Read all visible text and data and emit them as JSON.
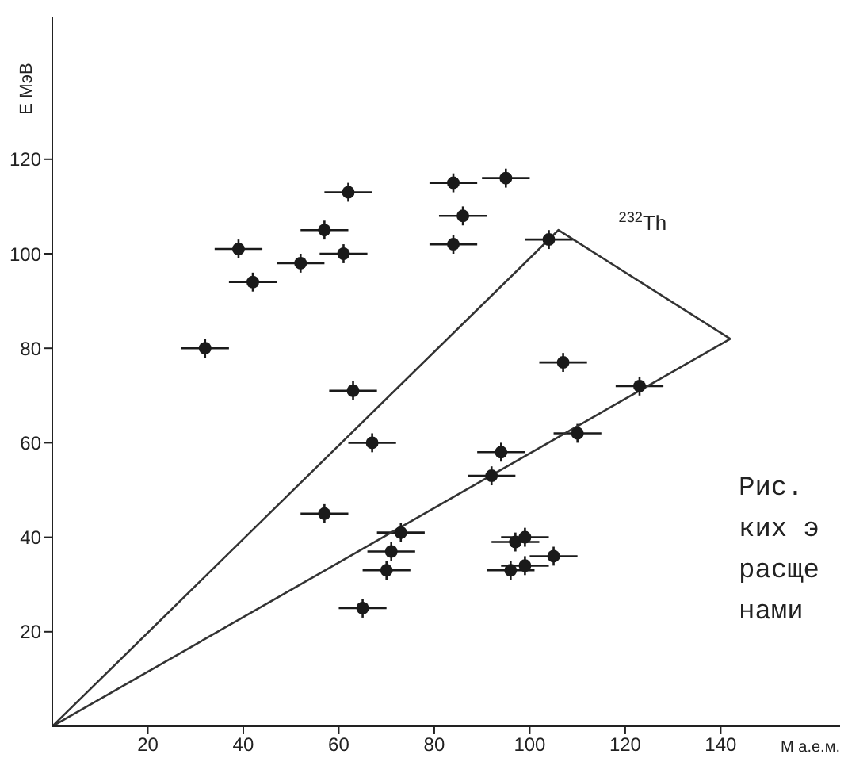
{
  "chart_data": {
    "type": "scatter",
    "xlabel": "M а.е.м.",
    "ylabel": "E МэВ",
    "xlim": [
      0,
      165
    ],
    "ylim": [
      0,
      150
    ],
    "xticks": [
      20,
      40,
      60,
      80,
      100,
      120,
      140
    ],
    "yticks": [
      20,
      40,
      60,
      80,
      100,
      120
    ],
    "marker": "circle",
    "annotations": [
      {
        "text": "$^{232}$Th",
        "x": 106,
        "y": 105
      },
      "Рис.",
      "ких э",
      "расще",
      "нами"
    ],
    "series": [
      {
        "color": "#1a1a1a",
        "x": [
          32,
          39,
          42,
          52,
          57,
          62,
          61,
          84,
          86,
          84,
          95,
          104,
          107,
          123,
          110,
          94,
          63,
          67,
          57,
          73,
          71,
          70,
          65,
          92,
          97,
          99,
          105,
          96,
          99
        ],
        "values": [
          80,
          101,
          94,
          98,
          105,
          113,
          100,
          115,
          108,
          102,
          116,
          103,
          77,
          72,
          62,
          58,
          71,
          60,
          45,
          41,
          37,
          33,
          25,
          53,
          39,
          40,
          36,
          33,
          34
        ],
        "xerrors": [
          5,
          5,
          5,
          5,
          5,
          5,
          5,
          5,
          5,
          5,
          5,
          5,
          5,
          5,
          5,
          5,
          5,
          5,
          5,
          5,
          5,
          5,
          5,
          5,
          5,
          5,
          5,
          5,
          5
        ],
        "errors": [
          2,
          2,
          2,
          2,
          2,
          2,
          2,
          2,
          2,
          2,
          2,
          2,
          2,
          2,
          2,
          2,
          2,
          2,
          2,
          2,
          2,
          2,
          2,
          2,
          2,
          2,
          2,
          2,
          2
        ]
      },
      {
        "type": "line",
        "color": "#333333",
        "x": [
          0,
          106,
          142
        ],
        "values": [
          0,
          105,
          82
        ],
        "marker": "none"
      },
      {
        "type": "line",
        "color": "#333333",
        "x": [
          0,
          142
        ],
        "values": [
          0,
          82
        ],
        "marker": "none"
      }
    ]
  }
}
